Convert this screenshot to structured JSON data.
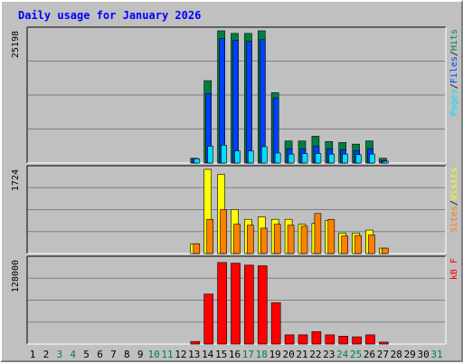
{
  "chart_data": {
    "type": "bar",
    "title": "Daily usage for January 2026",
    "colors": {
      "hits": "#008040",
      "files": "#0040ff",
      "pages": "#00e0ff",
      "visits": "#ffff00",
      "sites": "#ff8000",
      "kbytes": "#ff0000",
      "weekend_day_label": "#008040",
      "title": "#0000ff",
      "panel_bg": "#c0c0c0"
    },
    "categories": [
      "1",
      "2",
      "3",
      "4",
      "5",
      "6",
      "7",
      "8",
      "9",
      "10",
      "11",
      "12",
      "13",
      "14",
      "15",
      "16",
      "17",
      "18",
      "19",
      "20",
      "21",
      "22",
      "23",
      "24",
      "25",
      "26",
      "27",
      "28",
      "29",
      "30",
      "31"
    ],
    "weekend_days": [
      "3",
      "4",
      "10",
      "11",
      "17",
      "18",
      "24",
      "25",
      "31"
    ],
    "panels": [
      {
        "id": "hits-files-pages",
        "ymax_label": "25198",
        "ylim": [
          0,
          25198
        ],
        "legend": [
          {
            "label": "Pages",
            "color": "#00e0ff"
          },
          {
            "sep": "/"
          },
          {
            "label": "Files",
            "color": "#0040ff"
          },
          {
            "sep": "/"
          },
          {
            "label": "Hits",
            "color": "#008040"
          }
        ],
        "series": [
          {
            "name": "Hits",
            "color": "#008040",
            "values": [
              0,
              0,
              0,
              0,
              0,
              0,
              0,
              0,
              0,
              0,
              0,
              0,
              900,
              15700,
              25200,
              24700,
              24700,
              25200,
              13400,
              4200,
              4200,
              5100,
              4100,
              3900,
              3600,
              4200,
              900,
              0,
              0,
              0,
              0
            ]
          },
          {
            "name": "Files",
            "color": "#0040ff",
            "values": [
              0,
              0,
              0,
              0,
              0,
              0,
              0,
              0,
              0,
              0,
              0,
              0,
              900,
              13200,
              23700,
              23400,
              23200,
              23500,
              12400,
              2700,
              2700,
              3200,
              2700,
              2500,
              2400,
              2700,
              500,
              0,
              0,
              0,
              0
            ]
          },
          {
            "name": "Pages",
            "color": "#00e0ff",
            "values": [
              0,
              0,
              0,
              0,
              0,
              0,
              0,
              0,
              0,
              0,
              0,
              0,
              800,
              3200,
              3400,
              2300,
              2300,
              3100,
              1900,
              1700,
              1800,
              1800,
              1700,
              1700,
              1600,
              1700,
              300,
              0,
              0,
              0,
              0
            ]
          }
        ]
      },
      {
        "id": "visits-sites",
        "ymax_label": "1724",
        "ylim": [
          0,
          1724
        ],
        "legend": [
          {
            "label": "Sites",
            "color": "#ff8000"
          },
          {
            "sep": "/"
          },
          {
            "label": "Visits",
            "color": "#ffff00"
          }
        ],
        "series": [
          {
            "name": "Visits",
            "color": "#ffff00",
            "values": [
              0,
              0,
              0,
              0,
              0,
              0,
              0,
              0,
              0,
              0,
              0,
              0,
              200,
              1724,
              1620,
              900,
              700,
              750,
              700,
              700,
              600,
              620,
              680,
              420,
              420,
              480,
              110,
              0,
              0,
              0,
              0
            ]
          },
          {
            "name": "Sites",
            "color": "#ff8000",
            "values": [
              0,
              0,
              0,
              0,
              0,
              0,
              0,
              0,
              0,
              0,
              0,
              0,
              200,
              700,
              900,
              600,
              580,
              520,
              600,
              580,
              560,
              820,
              700,
              360,
              370,
              380,
              110,
              0,
              0,
              0,
              0
            ]
          }
        ]
      },
      {
        "id": "kbytes",
        "ymax_label": "128000",
        "ylim": [
          0,
          128000
        ],
        "legend": [
          {
            "label": "kB F",
            "color": "#ff0000"
          }
        ],
        "series": [
          {
            "name": "kB F",
            "color": "#ff0000",
            "values": [
              0,
              0,
              0,
              0,
              0,
              0,
              0,
              0,
              0,
              0,
              0,
              0,
              4000,
              76000,
              124000,
              123000,
              120000,
              119000,
              63000,
              14000,
              14000,
              19000,
              14000,
              12000,
              11000,
              14000,
              3000,
              0,
              0,
              0,
              0
            ]
          }
        ]
      }
    ]
  }
}
